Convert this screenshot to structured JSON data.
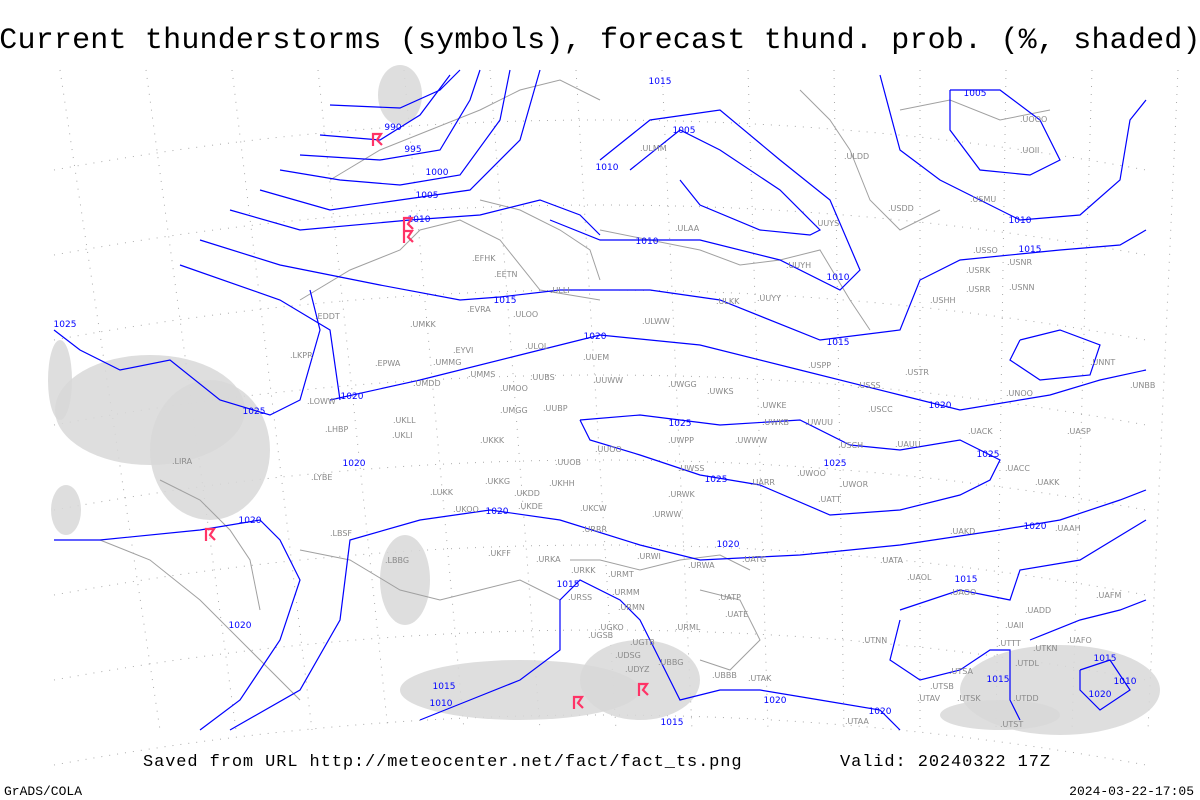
{
  "title": "Current thunderstorms (symbols), forecast thund. prob. (%, shaded)",
  "footer": {
    "saved_from": "Saved from URL http://meteocenter.net/fact/fact_ts.png",
    "valid": "Valid: 20240322 17Z",
    "software": "GrADS/COLA",
    "timestamp": "2024-03-22-17:05"
  },
  "colors": {
    "isobars": "#0000ff",
    "coastlines": "#a0a0a0",
    "thunderstorm_symbols": "#ff3366",
    "probability_shading": "#d8d8d8"
  },
  "isobar_labels": [
    "990",
    "995",
    "1000",
    "1005",
    "1010",
    "1015",
    "1005",
    "1010",
    "1010",
    "1005",
    "1010",
    "1015",
    "1010",
    "1015",
    "1015",
    "1020",
    "1020",
    "1025",
    "1025",
    "1020",
    "1020",
    "1020",
    "1020",
    "1025",
    "1025",
    "1025",
    "1025",
    "1020",
    "1020",
    "1020",
    "1015",
    "1015",
    "1015",
    "1010",
    "1015",
    "1020",
    "1020",
    "1015",
    "1015",
    "1010",
    "1020"
  ],
  "stations": [
    "EDDT",
    "LKPR",
    "EPWA",
    "UMKK",
    "EVRA",
    "ULOO",
    "EFHK",
    "EETN",
    "ULLI",
    "EYVI",
    "UMMG",
    "ULOL",
    "UMDD",
    "UMMS",
    "UMOO",
    "UUBS",
    "UUEM",
    "UUWW",
    "UWGG",
    "UWKS",
    "UWKE",
    "UWKB",
    "UWUU",
    "UWPP",
    "UWWW",
    "UUOO",
    "UUOB",
    "UMGG",
    "UUBP",
    "UKLL",
    "UKLI",
    "UKKK",
    "UKHH",
    "UKKG",
    "UKDD",
    "UKDE",
    "UKCW",
    "LUKK",
    "UKOO",
    "URRR",
    "URWK",
    "URWW",
    "UWSS",
    "UARR",
    "UWOO",
    "UWOR",
    "UATT",
    "USCC",
    "UACK",
    "UASP",
    "UAUU",
    "USCH",
    "UACC",
    "UAKK",
    "UNOO",
    "USSS",
    "USTR",
    "USPP",
    "UNNT",
    "UNBB",
    "ULDD",
    "ULMM",
    "ULAA",
    "UUYS",
    "UUYH",
    "UUYY",
    "ULKK",
    "ULWW",
    "USDD",
    "USMU",
    "UOOO",
    "UOII",
    "USRK",
    "USNR",
    "USRR",
    "USNN",
    "USHH",
    "USSO",
    "UAKD",
    "UAAH",
    "UATG",
    "URWI",
    "URWA",
    "UATA",
    "UAOL",
    "UAOO",
    "UAFM",
    "UADD",
    "UAII",
    "UTTT",
    "UTKN",
    "UAFO",
    "UTDL",
    "UTSA",
    "UTSB",
    "UTAV",
    "UTSK",
    "UTDD",
    "UTST",
    "UTAA",
    "UTAK",
    "UTNN",
    "UBBB",
    "URML",
    "UATP",
    "UATE",
    "URMT",
    "URMM",
    "URMN",
    "UGKO",
    "UGTB",
    "UDSG",
    "UBBG",
    "UDYZ",
    "URKK",
    "URKA",
    "UKFF",
    "URSS",
    "UGSB",
    "LBSF",
    "LBBG",
    "LIRA",
    "LOWW",
    "LHBP",
    "LYBE"
  ]
}
